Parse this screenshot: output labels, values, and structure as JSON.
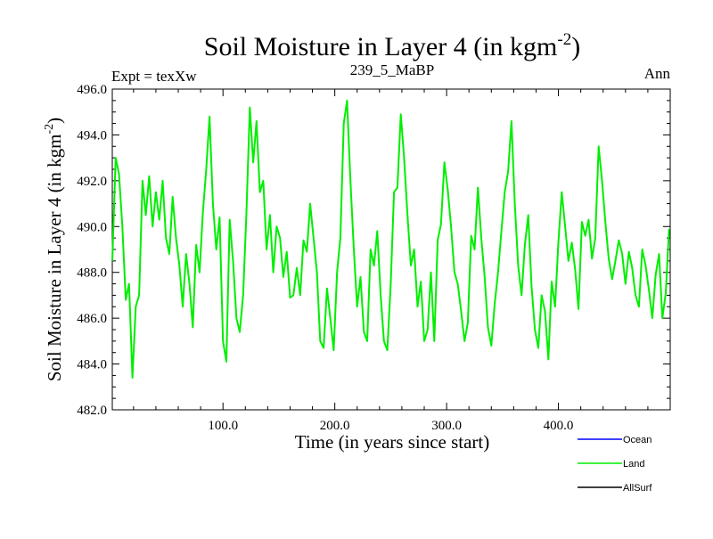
{
  "chart_data": {
    "type": "line",
    "title": "Soil Moisture in Layer 4 (in kgm",
    "title_sup": "-2",
    "title_end": ")",
    "left_label": "Expt = texXw",
    "center_label": "239_5_MaBP",
    "right_label": "Ann",
    "xlabel": "Time (in years since start)",
    "ylabel": "Soil Moisture in Layer 4 (in kgm",
    "ylabel_sup": "-2",
    "ylabel_end": ")",
    "xlim": [
      1,
      500
    ],
    "ylim": [
      482.0,
      496.0
    ],
    "x_ticks": [
      100,
      200,
      300,
      400
    ],
    "x_tick_labels": [
      "100.0",
      "200.0",
      "300.0",
      "400.0"
    ],
    "y_ticks": [
      482,
      484,
      486,
      488,
      490,
      492,
      494,
      496
    ],
    "y_tick_labels": [
      "482.0",
      "484.0",
      "486.0",
      "488.0",
      "490.0",
      "492.0",
      "494.0",
      "496.0"
    ],
    "legend": [
      {
        "name": "Ocean",
        "color": "#0000ff"
      },
      {
        "name": "Land",
        "color": "#00ee00"
      },
      {
        "name": "AllSurf",
        "color": "#000000"
      }
    ],
    "series": [
      {
        "name": "Land",
        "color": "#00ee00",
        "x": [
          1,
          4,
          7,
          10,
          13,
          16,
          19,
          22,
          25,
          28,
          31,
          34,
          37,
          40,
          43,
          46,
          49,
          52,
          55,
          58,
          61,
          64,
          67,
          70,
          73,
          76,
          79,
          82,
          85,
          88,
          91,
          94,
          97,
          100,
          103,
          106,
          109,
          112,
          115,
          118,
          121,
          124,
          127,
          130,
          133,
          136,
          139,
          142,
          145,
          148,
          151,
          154,
          157,
          160,
          163,
          166,
          169,
          172,
          175,
          178,
          181,
          184,
          187,
          190,
          193,
          196,
          199,
          202,
          205,
          208,
          211,
          214,
          217,
          220,
          223,
          226,
          229,
          232,
          235,
          238,
          241,
          244,
          247,
          250,
          253,
          256,
          259,
          262,
          265,
          268,
          271,
          274,
          277,
          280,
          283,
          286,
          289,
          292,
          295,
          298,
          301,
          304,
          307,
          310,
          313,
          316,
          319,
          322,
          325,
          328,
          331,
          334,
          337,
          340,
          343,
          346,
          349,
          352,
          355,
          358,
          361,
          364,
          367,
          370,
          373,
          376,
          379,
          382,
          385,
          388,
          391,
          394,
          397,
          400,
          403,
          406,
          409,
          412,
          415,
          418,
          421,
          424,
          427,
          430,
          433,
          436,
          439,
          442,
          445,
          448,
          451,
          454,
          457,
          460,
          463,
          466,
          469,
          472,
          475,
          478,
          481,
          484,
          487,
          490,
          493,
          496,
          499
        ],
        "values": [
          488.5,
          493.0,
          492.3,
          490.0,
          486.8,
          487.5,
          483.4,
          486.5,
          487.0,
          492.0,
          490.5,
          492.2,
          490.0,
          491.5,
          490.3,
          492.0,
          489.5,
          488.8,
          491.3,
          489.5,
          488.3,
          486.5,
          488.8,
          487.5,
          485.6,
          489.2,
          488.0,
          490.6,
          492.5,
          494.8,
          491.0,
          489.0,
          490.4,
          485.0,
          484.1,
          490.3,
          488.5,
          486.0,
          485.4,
          487.0,
          490.6,
          495.2,
          492.8,
          494.6,
          491.5,
          492.0,
          489.0,
          490.5,
          488.0,
          490.0,
          489.5,
          487.8,
          488.9,
          486.9,
          487.0,
          488.2,
          487.0,
          489.4,
          488.9,
          491.0,
          489.5,
          488.0,
          485.0,
          484.7,
          487.3,
          486.0,
          484.6,
          488.0,
          489.5,
          494.5,
          495.5,
          492.0,
          489.0,
          486.5,
          487.8,
          485.4,
          485.0,
          489.0,
          488.3,
          489.8,
          487.0,
          485.0,
          484.6,
          487.5,
          491.5,
          491.7,
          494.9,
          493.0,
          490.5,
          488.3,
          489.0,
          486.5,
          487.6,
          485.0,
          485.5,
          488.0,
          485.0,
          489.4,
          490.1,
          492.8,
          491.6,
          490.0,
          488.0,
          487.5,
          486.3,
          485.0,
          485.8,
          489.6,
          489.0,
          491.7,
          489.5,
          487.8,
          485.6,
          484.8,
          486.6,
          488.0,
          489.8,
          491.5,
          492.4,
          494.6,
          491.0,
          488.3,
          487.0,
          489.2,
          490.5,
          487.4,
          485.5,
          484.7,
          487.0,
          486.3,
          484.2,
          487.6,
          486.5,
          489.3,
          491.5,
          490.0,
          488.5,
          489.3,
          488.1,
          486.4,
          490.2,
          489.6,
          490.3,
          488.6,
          489.5,
          493.5,
          492.0,
          490.2,
          488.6,
          487.7,
          488.5,
          489.4,
          488.8,
          487.5,
          488.9,
          488.2,
          487.0,
          486.5,
          489.0,
          488.3,
          487.2,
          486.0,
          487.9,
          488.8,
          486.0,
          487.1,
          489.9
        ]
      }
    ]
  }
}
